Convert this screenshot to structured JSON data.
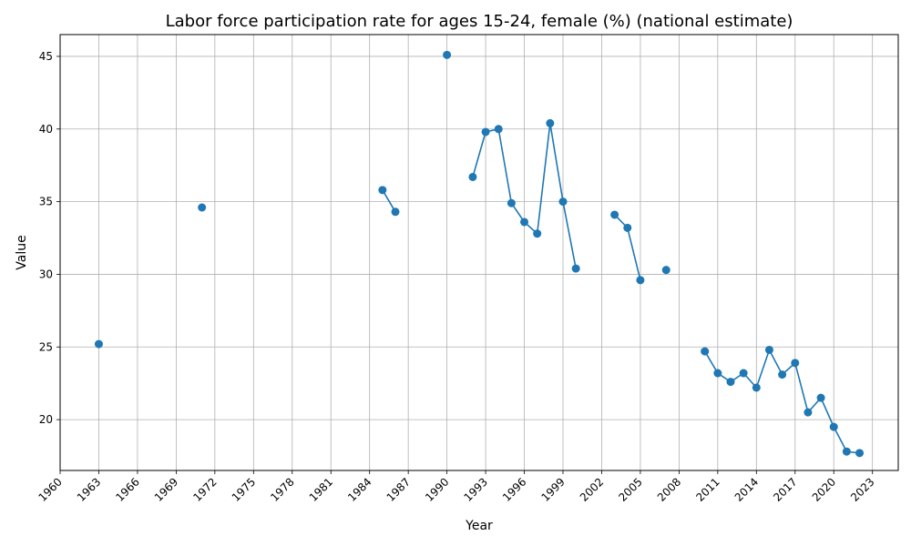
{
  "chart_data": {
    "type": "line",
    "title": "Labor force participation rate for ages 15-24, female (%) (national estimate)",
    "xlabel": "Year",
    "ylabel": "Value",
    "xlim": [
      1960,
      2025
    ],
    "ylim": [
      16.5,
      46.5
    ],
    "x_ticks": [
      1960,
      1963,
      1966,
      1969,
      1972,
      1975,
      1978,
      1981,
      1984,
      1987,
      1990,
      1993,
      1996,
      1999,
      2002,
      2005,
      2008,
      2011,
      2014,
      2017,
      2020,
      2023
    ],
    "y_ticks": [
      20,
      25,
      30,
      35,
      40,
      45
    ],
    "grid": true,
    "marker": "circle",
    "series_color": "#1f77b4",
    "series": [
      {
        "points": [
          {
            "x": 1963,
            "y": 25.2
          },
          {
            "x": 1964,
            "y": null
          },
          {
            "x": 1970,
            "y": null
          },
          {
            "x": 1971,
            "y": 34.6
          },
          {
            "x": 1972,
            "y": null
          },
          {
            "x": 1984,
            "y": null
          },
          {
            "x": 1985,
            "y": 35.8
          },
          {
            "x": 1986,
            "y": 34.3
          },
          {
            "x": 1987,
            "y": null
          },
          {
            "x": 1989,
            "y": null
          },
          {
            "x": 1990,
            "y": 45.1
          },
          {
            "x": 1991,
            "y": null
          },
          {
            "x": 1992,
            "y": 36.7
          },
          {
            "x": 1993,
            "y": 39.8
          },
          {
            "x": 1994,
            "y": 40.0
          },
          {
            "x": 1995,
            "y": 34.9
          },
          {
            "x": 1996,
            "y": 33.6
          },
          {
            "x": 1997,
            "y": 32.8
          },
          {
            "x": 1998,
            "y": 40.4
          },
          {
            "x": 1999,
            "y": 35.0
          },
          {
            "x": 2000,
            "y": 30.4
          },
          {
            "x": 2001,
            "y": null
          },
          {
            "x": 2002,
            "y": null
          },
          {
            "x": 2003,
            "y": 34.1
          },
          {
            "x": 2004,
            "y": 33.2
          },
          {
            "x": 2005,
            "y": 29.6
          },
          {
            "x": 2006,
            "y": null
          },
          {
            "x": 2007,
            "y": 30.3
          },
          {
            "x": 2008,
            "y": null
          },
          {
            "x": 2009,
            "y": null
          },
          {
            "x": 2010,
            "y": 24.7
          },
          {
            "x": 2011,
            "y": 23.2
          },
          {
            "x": 2012,
            "y": 22.6
          },
          {
            "x": 2013,
            "y": 23.2
          },
          {
            "x": 2014,
            "y": 22.2
          },
          {
            "x": 2015,
            "y": 24.8
          },
          {
            "x": 2016,
            "y": 23.1
          },
          {
            "x": 2017,
            "y": 23.9
          },
          {
            "x": 2018,
            "y": 20.5
          },
          {
            "x": 2019,
            "y": 21.5
          },
          {
            "x": 2020,
            "y": 19.5
          },
          {
            "x": 2021,
            "y": 17.8
          },
          {
            "x": 2022,
            "y": 17.7
          }
        ]
      }
    ]
  }
}
